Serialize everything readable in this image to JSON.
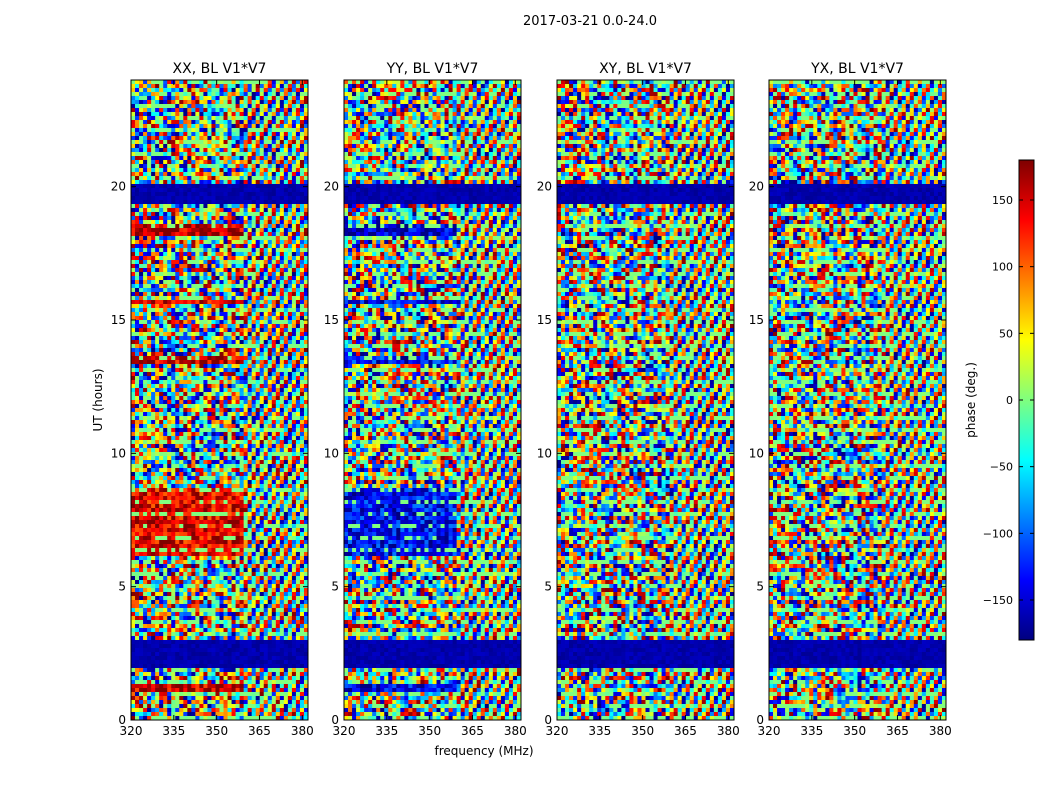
{
  "suptitle": "2017-03-21 0.0-24.0",
  "chart_data": [
    {
      "type": "heatmap",
      "title": "XX, BL V1*V7",
      "x_ticks": [
        320,
        335,
        350,
        365,
        380
      ],
      "y_ticks": [
        0,
        5,
        10,
        15,
        20
      ],
      "xlim": [
        320,
        382
      ],
      "ylim": [
        0,
        24
      ],
      "ylabel": "UT (hours)",
      "xlabel": ""
    },
    {
      "type": "heatmap",
      "title": "YY, BL V1*V7",
      "x_ticks": [
        320,
        335,
        350,
        365,
        380
      ],
      "y_ticks": [
        0,
        5,
        10,
        15,
        20
      ],
      "xlim": [
        320,
        382
      ],
      "ylim": [
        0,
        24
      ],
      "ylabel": "",
      "xlabel": "frequency (MHz)"
    },
    {
      "type": "heatmap",
      "title": "XY, BL V1*V7",
      "x_ticks": [
        320,
        335,
        350,
        365,
        380
      ],
      "y_ticks": [
        0,
        5,
        10,
        15,
        20
      ],
      "xlim": [
        320,
        382
      ],
      "ylim": [
        0,
        24
      ],
      "ylabel": "",
      "xlabel": ""
    },
    {
      "type": "heatmap",
      "title": "YX, BL V1*V7",
      "x_ticks": [
        320,
        335,
        350,
        365,
        380
      ],
      "y_ticks": [
        0,
        5,
        10,
        15,
        20
      ],
      "xlim": [
        320,
        382
      ],
      "ylim": [
        0,
        24
      ],
      "ylabel": "",
      "xlabel": ""
    }
  ],
  "colorbar": {
    "label": "phase (deg.)",
    "ticks": [
      150,
      100,
      50,
      0,
      -50,
      -100,
      -150
    ],
    "range": [
      -180,
      180
    ],
    "colormap": "jet"
  },
  "colors": {
    "jet_dark_blue": "#00007f",
    "jet_blue": "#0000ff",
    "jet_cyan": "#00ffff",
    "jet_green": "#7fff7f",
    "jet_yellow": "#ffff00",
    "jet_red": "#ff0000",
    "jet_dark_red": "#7f0000"
  }
}
